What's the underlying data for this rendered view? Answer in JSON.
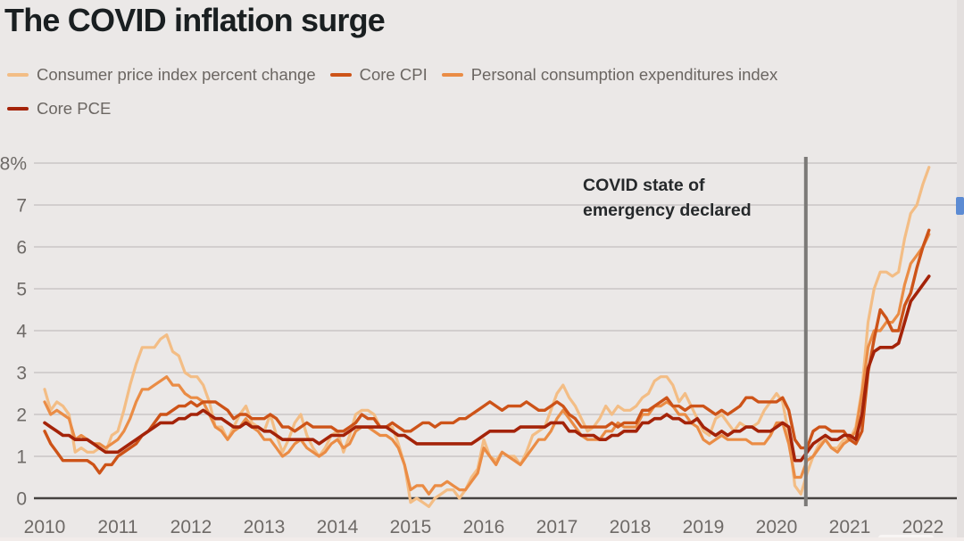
{
  "chart_data": {
    "type": "line",
    "title": "The COVID inflation surge",
    "x_start_year": 2010,
    "x_frequency": "monthly",
    "x_tick_labels": [
      "2010",
      "2011",
      "2012",
      "2013",
      "2014",
      "2015",
      "2016",
      "2017",
      "2018",
      "2019",
      "2020",
      "2021",
      "2022"
    ],
    "y_tick_values": [
      0,
      1,
      2,
      3,
      4,
      5,
      6,
      7,
      8
    ],
    "y_tick_labels": [
      "0",
      "1",
      "2",
      "3",
      "4",
      "5",
      "6",
      "7",
      "8%"
    ],
    "ylim": [
      0,
      8
    ],
    "grid": true,
    "legend_position": "top",
    "annotation": {
      "line1": "COVID state of",
      "line2": "emergency declared",
      "x_year": 2020.4
    },
    "vline": {
      "x_year": 2020.4,
      "color": "#7b7977"
    },
    "axis_colors": {
      "gridline": "#c9c6c5",
      "zero_axis": "#454240",
      "tick_text": "#6e6a67"
    },
    "series": [
      {
        "name": "Consumer price index percent change",
        "color": "#f3bd85",
        "values": [
          2.6,
          2.1,
          2.3,
          2.2,
          2.0,
          1.1,
          1.2,
          1.1,
          1.1,
          1.2,
          1.1,
          1.5,
          1.6,
          2.1,
          2.7,
          3.2,
          3.6,
          3.6,
          3.6,
          3.8,
          3.9,
          3.5,
          3.4,
          3.0,
          2.9,
          2.9,
          2.7,
          2.3,
          1.7,
          1.7,
          1.4,
          1.7,
          2.0,
          2.2,
          1.8,
          1.7,
          1.6,
          2.0,
          1.5,
          1.1,
          1.4,
          1.8,
          2.0,
          1.5,
          1.2,
          1.0,
          1.2,
          1.5,
          1.6,
          1.1,
          1.5,
          2.0,
          2.1,
          2.1,
          2.0,
          1.7,
          1.7,
          1.7,
          1.3,
          0.8,
          -0.1,
          0.0,
          -0.1,
          -0.2,
          0.0,
          0.1,
          0.2,
          0.2,
          0.0,
          0.2,
          0.5,
          0.7,
          1.4,
          1.0,
          0.9,
          1.1,
          1.0,
          1.0,
          0.8,
          1.1,
          1.5,
          1.6,
          1.7,
          2.1,
          2.5,
          2.7,
          2.4,
          2.2,
          1.9,
          1.6,
          1.7,
          1.9,
          2.2,
          2.0,
          2.2,
          2.1,
          2.1,
          2.2,
          2.4,
          2.5,
          2.8,
          2.9,
          2.9,
          2.7,
          2.3,
          2.5,
          2.2,
          1.9,
          1.6,
          1.5,
          1.9,
          2.0,
          1.8,
          1.6,
          1.8,
          1.7,
          1.7,
          1.8,
          2.1,
          2.3,
          2.5,
          2.3,
          1.5,
          0.3,
          0.1,
          0.6,
          1.0,
          1.3,
          1.4,
          1.2,
          1.2,
          1.4,
          1.4,
          1.7,
          2.6,
          4.2,
          5.0,
          5.4,
          5.4,
          5.3,
          5.4,
          6.2,
          6.8,
          7.0,
          7.5,
          7.9
        ]
      },
      {
        "name": "Core CPI",
        "color": "#cd5318",
        "values": [
          1.6,
          1.3,
          1.1,
          0.9,
          0.9,
          0.9,
          0.9,
          0.9,
          0.8,
          0.6,
          0.8,
          0.8,
          1.0,
          1.1,
          1.2,
          1.3,
          1.5,
          1.6,
          1.8,
          2.0,
          2.0,
          2.1,
          2.2,
          2.2,
          2.3,
          2.2,
          2.3,
          2.3,
          2.3,
          2.2,
          2.1,
          1.9,
          2.0,
          2.0,
          1.9,
          1.9,
          1.9,
          2.0,
          1.9,
          1.7,
          1.7,
          1.6,
          1.7,
          1.8,
          1.7,
          1.7,
          1.7,
          1.7,
          1.6,
          1.6,
          1.7,
          1.8,
          2.0,
          1.9,
          1.9,
          1.7,
          1.7,
          1.8,
          1.7,
          1.6,
          1.6,
          1.7,
          1.8,
          1.8,
          1.7,
          1.8,
          1.8,
          1.8,
          1.9,
          1.9,
          2.0,
          2.1,
          2.2,
          2.3,
          2.2,
          2.1,
          2.2,
          2.2,
          2.2,
          2.3,
          2.2,
          2.1,
          2.1,
          2.2,
          2.3,
          2.2,
          2.0,
          1.9,
          1.7,
          1.7,
          1.7,
          1.7,
          1.7,
          1.8,
          1.7,
          1.8,
          1.8,
          1.8,
          2.1,
          2.1,
          2.2,
          2.3,
          2.4,
          2.2,
          2.2,
          2.1,
          2.2,
          2.2,
          2.2,
          2.1,
          2.0,
          2.1,
          2.0,
          2.1,
          2.2,
          2.4,
          2.4,
          2.3,
          2.3,
          2.3,
          2.3,
          2.4,
          2.1,
          1.4,
          1.2,
          1.2,
          1.6,
          1.7,
          1.7,
          1.6,
          1.6,
          1.6,
          1.4,
          1.3,
          1.6,
          3.0,
          3.8,
          4.5,
          4.3,
          4.0,
          4.0,
          4.6,
          4.9,
          5.5,
          6.0,
          6.4
        ]
      },
      {
        "name": "Personal consumption expenditures index",
        "color": "#ea8c45",
        "values": [
          2.3,
          2.0,
          2.1,
          2.0,
          1.9,
          1.4,
          1.5,
          1.4,
          1.3,
          1.3,
          1.2,
          1.3,
          1.4,
          1.6,
          1.9,
          2.3,
          2.6,
          2.6,
          2.7,
          2.8,
          2.9,
          2.7,
          2.7,
          2.5,
          2.4,
          2.4,
          2.3,
          2.0,
          1.7,
          1.6,
          1.4,
          1.6,
          1.7,
          1.9,
          1.7,
          1.6,
          1.4,
          1.4,
          1.2,
          1.0,
          1.1,
          1.3,
          1.4,
          1.2,
          1.1,
          1.0,
          1.1,
          1.3,
          1.4,
          1.2,
          1.3,
          1.6,
          1.7,
          1.7,
          1.6,
          1.5,
          1.5,
          1.4,
          1.2,
          0.8,
          0.2,
          0.3,
          0.3,
          0.1,
          0.3,
          0.3,
          0.4,
          0.3,
          0.2,
          0.2,
          0.4,
          0.6,
          1.2,
          1.0,
          0.8,
          1.1,
          1.0,
          0.9,
          0.8,
          1.0,
          1.2,
          1.4,
          1.4,
          1.6,
          1.9,
          2.1,
          1.9,
          1.7,
          1.5,
          1.4,
          1.4,
          1.4,
          1.6,
          1.6,
          1.8,
          1.7,
          1.7,
          1.7,
          2.0,
          2.0,
          2.2,
          2.2,
          2.3,
          2.2,
          2.0,
          2.0,
          1.8,
          1.7,
          1.4,
          1.3,
          1.4,
          1.5,
          1.4,
          1.4,
          1.4,
          1.4,
          1.3,
          1.3,
          1.3,
          1.5,
          1.8,
          1.8,
          1.3,
          0.5,
          0.5,
          0.9,
          1.0,
          1.2,
          1.4,
          1.2,
          1.1,
          1.3,
          1.4,
          1.6,
          2.5,
          3.6,
          4.0,
          4.0,
          4.2,
          4.2,
          4.4,
          5.1,
          5.6,
          5.8,
          6.0,
          6.3
        ]
      },
      {
        "name": "Core PCE",
        "color": "#a42309",
        "values": [
          1.8,
          1.7,
          1.6,
          1.5,
          1.5,
          1.4,
          1.4,
          1.4,
          1.3,
          1.2,
          1.1,
          1.1,
          1.1,
          1.2,
          1.3,
          1.4,
          1.5,
          1.6,
          1.7,
          1.8,
          1.8,
          1.8,
          1.9,
          1.9,
          2.0,
          2.0,
          2.1,
          2.0,
          1.9,
          1.9,
          1.8,
          1.7,
          1.7,
          1.8,
          1.7,
          1.7,
          1.6,
          1.6,
          1.5,
          1.4,
          1.4,
          1.4,
          1.4,
          1.4,
          1.4,
          1.3,
          1.4,
          1.5,
          1.5,
          1.5,
          1.6,
          1.7,
          1.7,
          1.7,
          1.7,
          1.7,
          1.7,
          1.6,
          1.5,
          1.5,
          1.4,
          1.3,
          1.3,
          1.3,
          1.3,
          1.3,
          1.3,
          1.3,
          1.3,
          1.3,
          1.3,
          1.4,
          1.5,
          1.6,
          1.6,
          1.6,
          1.6,
          1.6,
          1.7,
          1.7,
          1.7,
          1.7,
          1.7,
          1.8,
          1.8,
          1.8,
          1.6,
          1.6,
          1.5,
          1.5,
          1.5,
          1.4,
          1.4,
          1.5,
          1.5,
          1.6,
          1.6,
          1.6,
          1.8,
          1.8,
          1.9,
          1.9,
          2.0,
          1.9,
          1.9,
          1.8,
          1.8,
          1.9,
          1.7,
          1.6,
          1.5,
          1.6,
          1.5,
          1.6,
          1.6,
          1.7,
          1.7,
          1.6,
          1.6,
          1.6,
          1.7,
          1.8,
          1.7,
          0.9,
          0.9,
          1.1,
          1.3,
          1.4,
          1.5,
          1.4,
          1.4,
          1.5,
          1.5,
          1.4,
          2.0,
          3.1,
          3.5,
          3.6,
          3.6,
          3.6,
          3.7,
          4.2,
          4.7,
          4.9,
          5.1,
          5.3
        ]
      }
    ]
  },
  "overlay_artifacts": {
    "right_edge_color": "#e3dfde",
    "blue_glyph_color": "#4d82d2"
  }
}
